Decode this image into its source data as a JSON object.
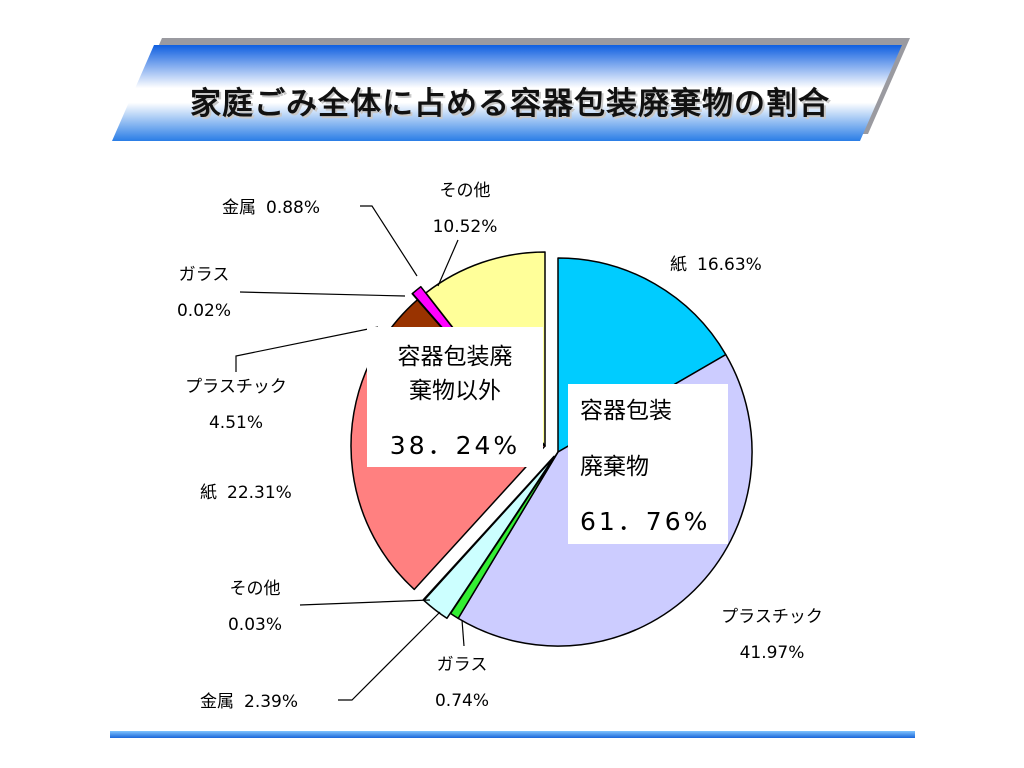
{
  "title": "家庭ごみ全体に占める容器包装廃棄物の割合",
  "colors": {
    "paper_pkg": "#00ccff",
    "plastic_pkg": "#ccccff",
    "glass_pkg": "#33ee33",
    "metal_pkg": "#ccffff",
    "other_pkg": "#ccffff",
    "paper_other": "#ff8080",
    "plastic_other": "#993300",
    "glass_other": "#ffffff",
    "metal_other": "#ff00ff",
    "other_other": "#ffff99",
    "banner": "#1f78ff"
  },
  "chart_data": {
    "type": "pie",
    "title": "家庭ごみ全体に占める容器包装廃棄物の割合",
    "groups": [
      {
        "label_lines": [
          "容器包装",
          "廃棄物"
        ],
        "percent_text": "61．76%",
        "value": 61.76
      },
      {
        "label_lines": [
          "容器包装廃",
          "棄物以外"
        ],
        "percent_text": "38．24%",
        "value": 38.24
      }
    ],
    "slices": [
      {
        "group": 0,
        "name": "紙",
        "value": 16.63,
        "label": "16.63%",
        "color": "#00ccff"
      },
      {
        "group": 0,
        "name": "プラスチック",
        "value": 41.97,
        "label": "41.97%",
        "color": "#ccccff"
      },
      {
        "group": 0,
        "name": "ガラス",
        "value": 0.74,
        "label": "0.74%",
        "color": "#33ee33"
      },
      {
        "group": 0,
        "name": "金属",
        "value": 2.39,
        "label": "2.39%",
        "color": "#ccffff"
      },
      {
        "group": 0,
        "name": "その他",
        "value": 0.03,
        "label": "0.03%",
        "color": "#ccffff"
      },
      {
        "group": 1,
        "name": "紙",
        "value": 22.31,
        "label": "22.31%",
        "color": "#ff8080"
      },
      {
        "group": 1,
        "name": "プラスチック",
        "value": 4.51,
        "label": "4.51%",
        "color": "#993300"
      },
      {
        "group": 1,
        "name": "ガラス",
        "value": 0.02,
        "label": "0.02%",
        "color": "#ffffff"
      },
      {
        "group": 1,
        "name": "金属",
        "value": 0.88,
        "label": "0.88%",
        "color": "#ff00ff"
      },
      {
        "group": 1,
        "name": "その他",
        "value": 10.52,
        "label": "10.52%",
        "color": "#ffff99"
      }
    ]
  }
}
